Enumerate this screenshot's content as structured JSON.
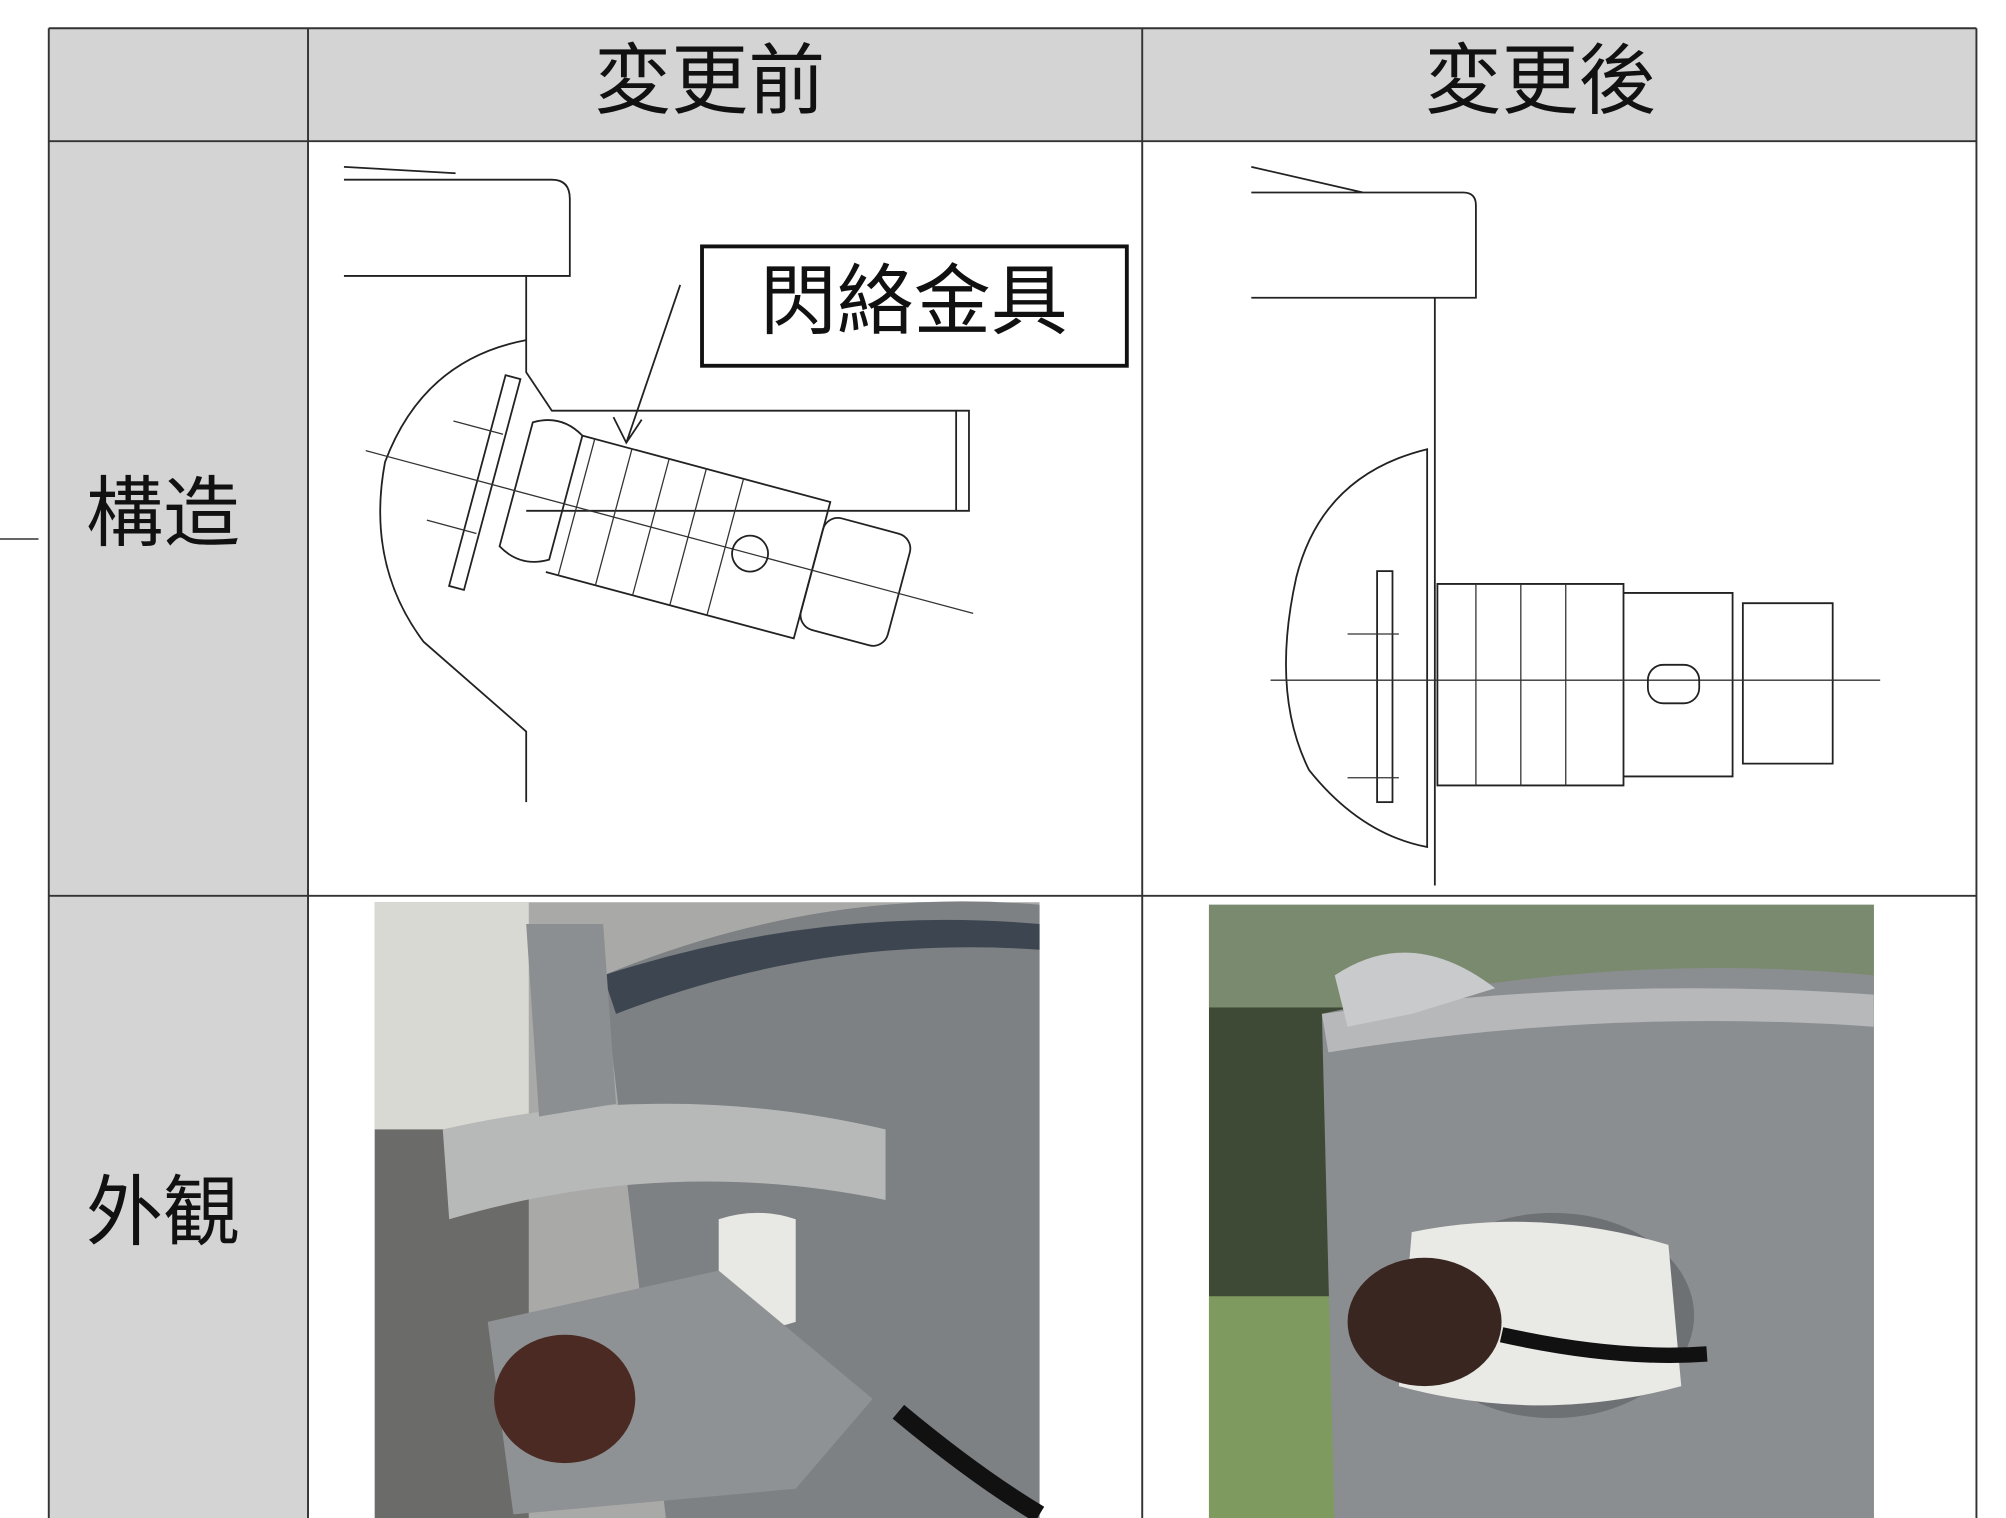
{
  "table": {
    "column_headers": [
      "変更前",
      "変更後"
    ],
    "row_labels": [
      "構造",
      "外観"
    ]
  },
  "callout": "閃絡金具"
}
